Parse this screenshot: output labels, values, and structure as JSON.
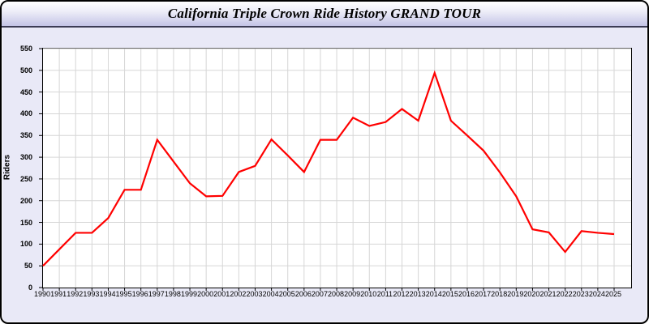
{
  "window": {
    "title": "California Triple Crown Ride History GRAND TOUR"
  },
  "chart_data": {
    "type": "line",
    "title": "California Triple Crown Ride History GRAND TOUR",
    "xlabel": "",
    "ylabel": "Riders",
    "x": [
      1990,
      1991,
      1992,
      1993,
      1994,
      1995,
      1996,
      1997,
      1998,
      1999,
      2000,
      2001,
      2002,
      2003,
      2004,
      2005,
      2006,
      2007,
      2008,
      2009,
      2010,
      2011,
      2012,
      2013,
      2014,
      2015,
      2016,
      2017,
      2018,
      2019,
      2020,
      2021,
      2022,
      2023,
      2024,
      2025
    ],
    "series": [
      {
        "name": "Riders",
        "color": "#ff0000",
        "values": [
          50,
          88,
          126,
          126,
          160,
          225,
          225,
          340,
          290,
          240,
          210,
          211,
          266,
          280,
          341,
          304,
          266,
          340,
          340,
          391,
          372,
          381,
          411,
          384,
          494,
          384,
          350,
          315,
          265,
          210,
          134,
          127,
          82,
          130,
          126,
          123
        ]
      }
    ],
    "ylim": [
      0,
      550
    ],
    "ytick_step": 50,
    "grid": true,
    "legend_position": "none",
    "colors": {
      "plot_background": "#ffffff",
      "window_background": "#e9e9f7",
      "gridline": "#d6d6d6",
      "axis": "#000000",
      "line": "#ff0000"
    }
  }
}
